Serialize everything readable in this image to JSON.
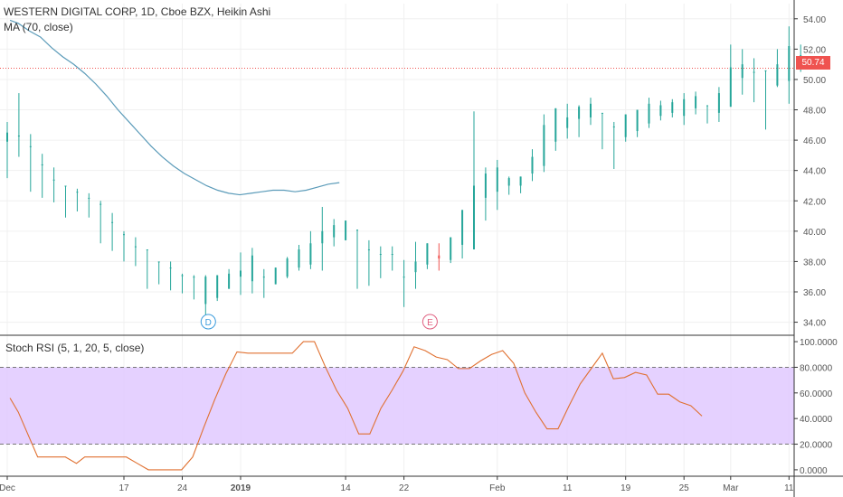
{
  "header": {
    "title": "WESTERN DIGITAL CORP, 1D, Cboe BZX, Heikin Ashi",
    "ma_label": "MA (70, close)",
    "stoch_label": "Stoch RSI (5, 1, 20, 5, close)"
  },
  "colors": {
    "up": "#26a69a",
    "down": "#ef5350",
    "ma_line": "#5b9bb9",
    "stoch_line": "#e07030",
    "stoch_band": "#e1c9ff",
    "grid": "#f0f0f0",
    "axis_text": "#555555"
  },
  "price_tag": "50.74",
  "chart_data": [
    {
      "type": "candlestick",
      "name": "price",
      "yticks": [
        "54.00",
        "52.00",
        "50.00",
        "48.00",
        "46.00",
        "44.00",
        "42.00",
        "40.00",
        "38.00",
        "36.00",
        "34.00"
      ],
      "ylim": [
        33.2,
        55.0
      ],
      "last_price": 50.74,
      "candles": [
        [
          45.9,
          46.5,
          43.5,
          47.2
        ],
        [
          46.3,
          46.3,
          44.9,
          49.1
        ],
        [
          45.6,
          45.6,
          42.6,
          46.4
        ],
        [
          44.4,
          44.4,
          42.2,
          45.1
        ],
        [
          43.4,
          43.4,
          41.9,
          44.2
        ],
        [
          43.0,
          43.0,
          40.9,
          43.0
        ],
        [
          42.6,
          42.6,
          41.3,
          42.8
        ],
        [
          42.2,
          42.2,
          40.9,
          42.5
        ],
        [
          41.8,
          41.8,
          39.2,
          42.0
        ],
        [
          40.6,
          40.6,
          38.7,
          41.2
        ],
        [
          39.8,
          39.8,
          38.0,
          40.0
        ],
        [
          39.0,
          39.0,
          37.7,
          39.6
        ],
        [
          38.8,
          38.8,
          36.2,
          38.8
        ],
        [
          38.0,
          38.0,
          36.5,
          38.0
        ],
        [
          37.6,
          37.6,
          36.1,
          38.0
        ],
        [
          37.1,
          37.1,
          35.9,
          37.2
        ],
        [
          37.0,
          37.0,
          35.5,
          37.1
        ],
        [
          35.2,
          37.0,
          33.8,
          37.1
        ],
        [
          35.6,
          37.1,
          35.4,
          37.1
        ],
        [
          36.2,
          37.2,
          36.2,
          37.5
        ],
        [
          37.0,
          37.4,
          35.8,
          38.6
        ],
        [
          36.7,
          38.4,
          35.9,
          38.9
        ],
        [
          37.0,
          37.0,
          35.6,
          37.5
        ],
        [
          36.5,
          37.6,
          36.5,
          37.6
        ],
        [
          37.0,
          38.2,
          36.9,
          38.3
        ],
        [
          37.6,
          38.8,
          37.4,
          39.1
        ],
        [
          37.8,
          39.2,
          37.5,
          40.0
        ],
        [
          39.2,
          40.0,
          37.4,
          41.6
        ],
        [
          39.6,
          40.4,
          39.0,
          40.8
        ],
        [
          39.4,
          40.7,
          39.4,
          40.7
        ],
        [
          40.1,
          40.1,
          36.2,
          40.1
        ],
        [
          38.8,
          38.8,
          36.4,
          39.4
        ],
        [
          38.5,
          38.5,
          36.9,
          39.0
        ],
        [
          38.5,
          38.5,
          37.4,
          39.0
        ],
        [
          37.0,
          37.0,
          35.0,
          38.1
        ],
        [
          37.3,
          38.0,
          36.2,
          39.3
        ],
        [
          37.8,
          39.2,
          37.5,
          39.2
        ],
        [
          38.4,
          38.2,
          37.4,
          39.2
        ],
        [
          38.1,
          39.6,
          37.9,
          39.6
        ],
        [
          39.1,
          41.4,
          38.2,
          41.4
        ],
        [
          38.8,
          43.0,
          38.8,
          47.9
        ],
        [
          42.2,
          43.8,
          40.7,
          44.2
        ],
        [
          42.6,
          44.2,
          41.4,
          44.7
        ],
        [
          43.0,
          43.5,
          42.4,
          43.6
        ],
        [
          43.0,
          43.6,
          42.5,
          43.6
        ],
        [
          43.8,
          44.9,
          43.3,
          45.4
        ],
        [
          44.3,
          47.0,
          43.9,
          47.7
        ],
        [
          45.9,
          48.1,
          45.3,
          48.1
        ],
        [
          46.8,
          47.5,
          46.1,
          48.4
        ],
        [
          47.4,
          48.2,
          46.2,
          48.3
        ],
        [
          47.5,
          48.4,
          47.0,
          48.8
        ],
        [
          47.8,
          47.8,
          45.4,
          47.8
        ],
        [
          46.9,
          46.9,
          44.1,
          47.2
        ],
        [
          46.2,
          47.7,
          45.9,
          47.7
        ],
        [
          46.6,
          48.0,
          46.2,
          48.0
        ],
        [
          47.1,
          48.4,
          46.8,
          48.8
        ],
        [
          47.6,
          48.3,
          47.3,
          48.6
        ],
        [
          47.8,
          48.5,
          47.5,
          48.7
        ],
        [
          47.6,
          48.7,
          47.0,
          49.1
        ],
        [
          48.1,
          48.9,
          47.7,
          49.2
        ],
        [
          48.3,
          48.3,
          47.1,
          48.3
        ],
        [
          47.8,
          49.1,
          47.2,
          49.5
        ],
        [
          48.2,
          50.8,
          48.2,
          52.3
        ],
        [
          50.1,
          51.0,
          49.0,
          52.0
        ],
        [
          50.5,
          50.5,
          48.5,
          51.4
        ],
        [
          50.6,
          50.6,
          46.7,
          50.6
        ],
        [
          49.6,
          51.0,
          49.5,
          52.0
        ],
        [
          49.9,
          52.2,
          48.4,
          53.5
        ],
        [
          51.6,
          51.6,
          50.5,
          52.3
        ]
      ],
      "ma": [
        [
          1,
          53.9
        ],
        [
          4,
          53.7
        ],
        [
          8,
          53.2
        ],
        [
          12,
          52.8
        ],
        [
          16,
          52.1
        ],
        [
          20,
          51.5
        ],
        [
          24,
          51.0
        ],
        [
          28,
          50.4
        ],
        [
          32,
          49.7
        ],
        [
          36,
          48.9
        ],
        [
          40,
          48.0
        ],
        [
          44,
          47.2
        ],
        [
          48,
          46.4
        ],
        [
          52,
          45.6
        ],
        [
          56,
          44.9
        ],
        [
          60,
          44.3
        ],
        [
          64,
          43.8
        ],
        [
          68,
          43.4
        ],
        [
          72,
          43.0
        ],
        [
          76,
          42.7
        ],
        [
          80,
          42.5
        ],
        [
          84,
          42.4
        ],
        [
          88,
          42.5
        ],
        [
          92,
          42.6
        ],
        [
          96,
          42.7
        ],
        [
          100,
          42.7
        ],
        [
          104,
          42.6
        ],
        [
          108,
          42.7
        ],
        [
          112,
          42.9
        ],
        [
          116,
          43.1
        ],
        [
          120,
          43.2
        ]
      ]
    },
    {
      "type": "line",
      "name": "Stoch RSI",
      "yticks": [
        "100.0000",
        "80.0000",
        "60.0000",
        "40.0000",
        "20.0000",
        "0.0000"
      ],
      "ylim": [
        -5,
        105
      ],
      "band": [
        20,
        80
      ],
      "points": [
        [
          1,
          56
        ],
        [
          4,
          45
        ],
        [
          8,
          25
        ],
        [
          11,
          10
        ],
        [
          14,
          10
        ],
        [
          17,
          10
        ],
        [
          21,
          10
        ],
        [
          25,
          5
        ],
        [
          28,
          10
        ],
        [
          31,
          10
        ],
        [
          35,
          10
        ],
        [
          39,
          10
        ],
        [
          43,
          10
        ],
        [
          47,
          5
        ],
        [
          51,
          0
        ],
        [
          55,
          0
        ],
        [
          59,
          0
        ],
        [
          63,
          0
        ],
        [
          67,
          10
        ],
        [
          71,
          33
        ],
        [
          75,
          55
        ],
        [
          79,
          75
        ],
        [
          83,
          92
        ],
        [
          87,
          91
        ],
        [
          91,
          91
        ],
        [
          95,
          91
        ],
        [
          99,
          91
        ],
        [
          103,
          91
        ],
        [
          107,
          100
        ],
        [
          111,
          100
        ],
        [
          115,
          80
        ],
        [
          119,
          62
        ],
        [
          123,
          48
        ],
        [
          127,
          28
        ],
        [
          131,
          28
        ],
        [
          135,
          48
        ],
        [
          139,
          62
        ],
        [
          143,
          77
        ],
        [
          147,
          96
        ],
        [
          151,
          93
        ],
        [
          155,
          88
        ],
        [
          159,
          86
        ],
        [
          163,
          79
        ],
        [
          167,
          79
        ],
        [
          171,
          85
        ],
        [
          175,
          90
        ],
        [
          179,
          93
        ],
        [
          183,
          83
        ],
        [
          187,
          60
        ],
        [
          191,
          45
        ],
        [
          195,
          32
        ],
        [
          199,
          32
        ],
        [
          203,
          50
        ],
        [
          207,
          67
        ],
        [
          211,
          79
        ],
        [
          215,
          91
        ],
        [
          219,
          71
        ],
        [
          223,
          72
        ],
        [
          227,
          76
        ],
        [
          231,
          74
        ],
        [
          235,
          59
        ],
        [
          239,
          59
        ],
        [
          243,
          53
        ],
        [
          247,
          50
        ],
        [
          251,
          42
        ]
      ]
    }
  ],
  "xaxis_labels": [
    {
      "text": "Dec",
      "i": 0
    },
    {
      "text": "17",
      "i": 10
    },
    {
      "text": "24",
      "i": 15
    },
    {
      "text": "2019",
      "i": 20
    },
    {
      "text": "14",
      "i": 29
    },
    {
      "text": "22",
      "i": 34
    },
    {
      "text": "Feb",
      "i": 42
    },
    {
      "text": "11",
      "i": 48
    },
    {
      "text": "19",
      "i": 53
    },
    {
      "text": "25",
      "i": 58
    },
    {
      "text": "Mar",
      "i": 62
    },
    {
      "text": "11",
      "i": 67
    }
  ],
  "markers": [
    {
      "text": "D",
      "i": 17
    },
    {
      "text": "E",
      "i": 36
    }
  ]
}
